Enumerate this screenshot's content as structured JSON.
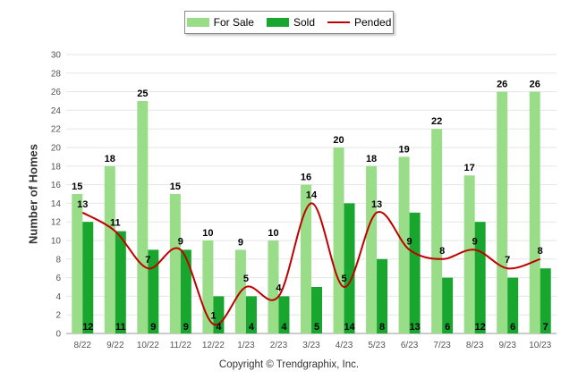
{
  "legend": {
    "items": [
      {
        "label": "For Sale",
        "color": "#99dd88"
      },
      {
        "label": "Sold",
        "color": "#18a62e"
      },
      {
        "label": "Pended",
        "color": "#c00000"
      }
    ]
  },
  "footer": {
    "copyright": "Copyright © Trendgraphix, Inc."
  },
  "chart_data": {
    "type": "bar",
    "ylabel": "Number of Homes",
    "xlabel": "",
    "ylim": [
      0,
      30
    ],
    "yticks": [
      0,
      2,
      4,
      6,
      8,
      10,
      12,
      14,
      16,
      18,
      20,
      22,
      24,
      26,
      28,
      30
    ],
    "grid": true,
    "legend_position": "top-center",
    "categories": [
      "8/22",
      "9/22",
      "10/22",
      "11/22",
      "12/22",
      "1/23",
      "2/23",
      "3/23",
      "4/23",
      "5/23",
      "6/23",
      "7/23",
      "8/23",
      "9/23",
      "10/23"
    ],
    "series": [
      {
        "name": "For Sale",
        "type": "bar",
        "color": "#99dd88",
        "values": [
          15,
          18,
          25,
          15,
          10,
          9,
          10,
          16,
          20,
          18,
          19,
          22,
          17,
          26,
          26
        ]
      },
      {
        "name": "Sold",
        "type": "bar",
        "color": "#18a62e",
        "values": [
          12,
          11,
          9,
          9,
          4,
          4,
          4,
          5,
          14,
          8,
          13,
          6,
          12,
          6,
          7
        ]
      },
      {
        "name": "Pended",
        "type": "line",
        "color": "#c00000",
        "values": [
          13,
          11,
          7,
          9,
          1,
          5,
          4,
          14,
          5,
          13,
          9,
          8,
          9,
          7,
          8
        ]
      }
    ]
  }
}
